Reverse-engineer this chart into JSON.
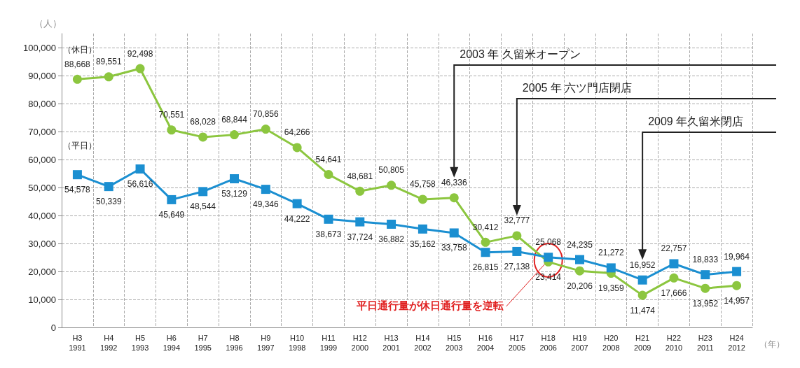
{
  "chart_data": {
    "type": "line",
    "xlabel": "（年）",
    "ylabel": "（人）",
    "categories": [
      "H3\n1991",
      "H4\n1992",
      "H5\n1993",
      "H6\n1994",
      "H7\n1995",
      "H8\n1996",
      "H9\n1997",
      "H10\n1998",
      "H11\n1999",
      "H12\n2000",
      "H13\n2001",
      "H14\n2002",
      "H15\n2003",
      "H16\n2004",
      "H17\n2005",
      "H18\n2006",
      "H19\n2007",
      "H20\n2008",
      "H21\n2009",
      "H22\n2010",
      "H23\n2011",
      "H24\n2012"
    ],
    "series": [
      {
        "name": "（休日）",
        "color": "#8cc63f",
        "marker": "circle",
        "values": [
          88668,
          89551,
          92498,
          70551,
          68028,
          68844,
          70856,
          64266,
          54641,
          48681,
          50805,
          45758,
          46336,
          30412,
          32777,
          23414,
          20206,
          19359,
          11474,
          17666,
          13952,
          14957
        ],
        "value_labels": [
          "88,668",
          "89,551",
          "92,498",
          "70,551",
          "68,028",
          "68,844",
          "70,856",
          "64,266",
          "54,641",
          "48,681",
          "50,805",
          "45,758",
          "46,336",
          "30,412",
          "32,777",
          "23,414",
          "20,206",
          "19,359",
          "11,474",
          "17,666",
          "13,952",
          "14,957"
        ]
      },
      {
        "name": "（平日）",
        "color": "#1b8fd1",
        "marker": "square",
        "values": [
          54578,
          50339,
          56616,
          45649,
          48544,
          53129,
          49346,
          44222,
          38673,
          37724,
          36882,
          35162,
          33758,
          26815,
          27138,
          25068,
          24235,
          21272,
          16952,
          22757,
          18833,
          19964
        ],
        "value_labels": [
          "54,578",
          "50,339",
          "56,616",
          "45,649",
          "48,544",
          "53,129",
          "49,346",
          "44,222",
          "38,673",
          "37,724",
          "36,882",
          "35,162",
          "33,758",
          "26,815",
          "27,138",
          "25,068",
          "24,235",
          "21,272",
          "16,952",
          "22,757",
          "18,833",
          "19,964"
        ]
      }
    ],
    "ylim": [
      0,
      105000
    ],
    "yticks": [
      0,
      {
        "value": 10000,
        "label": "10,000"
      },
      {
        "value": 20000,
        "label": "20,000"
      },
      {
        "value": 30000,
        "label": "30,000"
      },
      {
        "value": 40000,
        "label": "40,000"
      },
      {
        "value": 50000,
        "label": "50,000"
      },
      {
        "value": 60000,
        "label": "60,000"
      },
      {
        "value": 70000,
        "label": "70,000"
      },
      {
        "value": 80000,
        "label": "80,000"
      },
      {
        "value": 90000,
        "label": "90,000"
      },
      {
        "value": 100000,
        "label": "100,000"
      }
    ],
    "grid": true,
    "line_style": "solid",
    "legend": false,
    "annotations": [
      "2003 年 久留米オープン",
      "2005 年 六ツ門店閉店",
      "2009 年久留米閉店",
      {
        "text": "平日通行量が休日通行量を逆転",
        "x": "H18\n2006",
        "y": 24000
      }
    ]
  }
}
